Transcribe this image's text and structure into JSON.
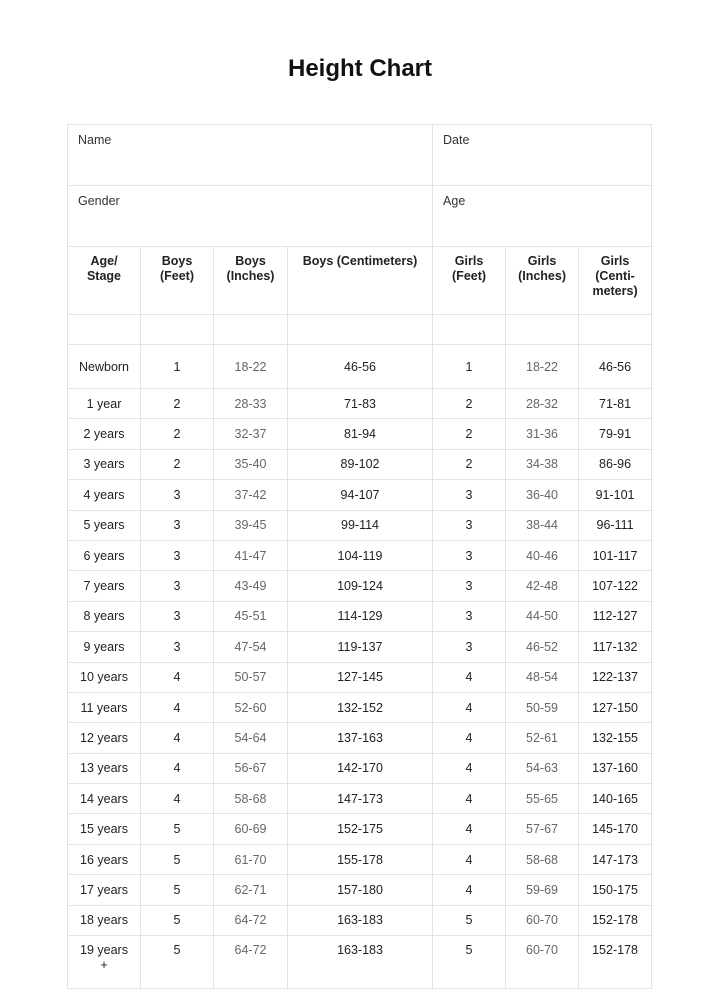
{
  "title": "Height Chart",
  "form": {
    "name": "Name",
    "date": "Date",
    "gender": "Gender",
    "age": "Age"
  },
  "headers": [
    "Age/ Stage",
    "Boys (Feet)",
    "Boys (Inches)",
    "Boys (Centimeters)",
    "Girls (Feet)",
    "Girls (Inches)",
    "Girls (Centi-meters)"
  ],
  "rows": [
    [
      "Newborn",
      "1",
      "18-22",
      "46-56",
      "1",
      "18-22",
      "46-56"
    ],
    [
      "1 year",
      "2",
      "28-33",
      "71-83",
      "2",
      "28-32",
      "71-81"
    ],
    [
      "2 years",
      "2",
      "32-37",
      "81-94",
      "2",
      "31-36",
      "79-91"
    ],
    [
      "3 years",
      "2",
      "35-40",
      "89-102",
      "2",
      "34-38",
      "86-96"
    ],
    [
      "4 years",
      "3",
      "37-42",
      "94-107",
      "3",
      "36-40",
      "91-101"
    ],
    [
      "5 years",
      "3",
      "39-45",
      "99-114",
      "3",
      "38-44",
      "96-111"
    ],
    [
      "6 years",
      "3",
      "41-47",
      "104-119",
      "3",
      "40-46",
      "101-117"
    ],
    [
      "7 years",
      "3",
      "43-49",
      "109-124",
      "3",
      "42-48",
      "107-122"
    ],
    [
      "8 years",
      "3",
      "45-51",
      "114-129",
      "3",
      "44-50",
      "112-127"
    ],
    [
      "9 years",
      "3",
      "47-54",
      "119-137",
      "3",
      "46-52",
      "117-132"
    ],
    [
      "10 years",
      "4",
      "50-57",
      "127-145",
      "4",
      "48-54",
      "122-137"
    ],
    [
      "11 years",
      "4",
      "52-60",
      "132-152",
      "4",
      "50-59",
      "127-150"
    ],
    [
      "12 years",
      "4",
      "54-64",
      "137-163",
      "4",
      "52-61",
      "132-155"
    ],
    [
      "13 years",
      "4",
      "56-67",
      "142-170",
      "4",
      "54-63",
      "137-160"
    ],
    [
      "14 years",
      "4",
      "58-68",
      "147-173",
      "4",
      "55-65",
      "140-165"
    ],
    [
      "15 years",
      "5",
      "60-69",
      "152-175",
      "4",
      "57-67",
      "145-170"
    ],
    [
      "16 years",
      "5",
      "61-70",
      "155-178",
      "4",
      "58-68",
      "147-173"
    ],
    [
      "17 years",
      "5",
      "62-71",
      "157-180",
      "4",
      "59-69",
      "150-175"
    ],
    [
      "18 years",
      "5",
      "64-72",
      "163-183",
      "5",
      "60-70",
      "152-178"
    ],
    [
      "19 years +",
      "5",
      "64-72",
      "163-183",
      "5",
      "60-70",
      "152-178"
    ]
  ]
}
